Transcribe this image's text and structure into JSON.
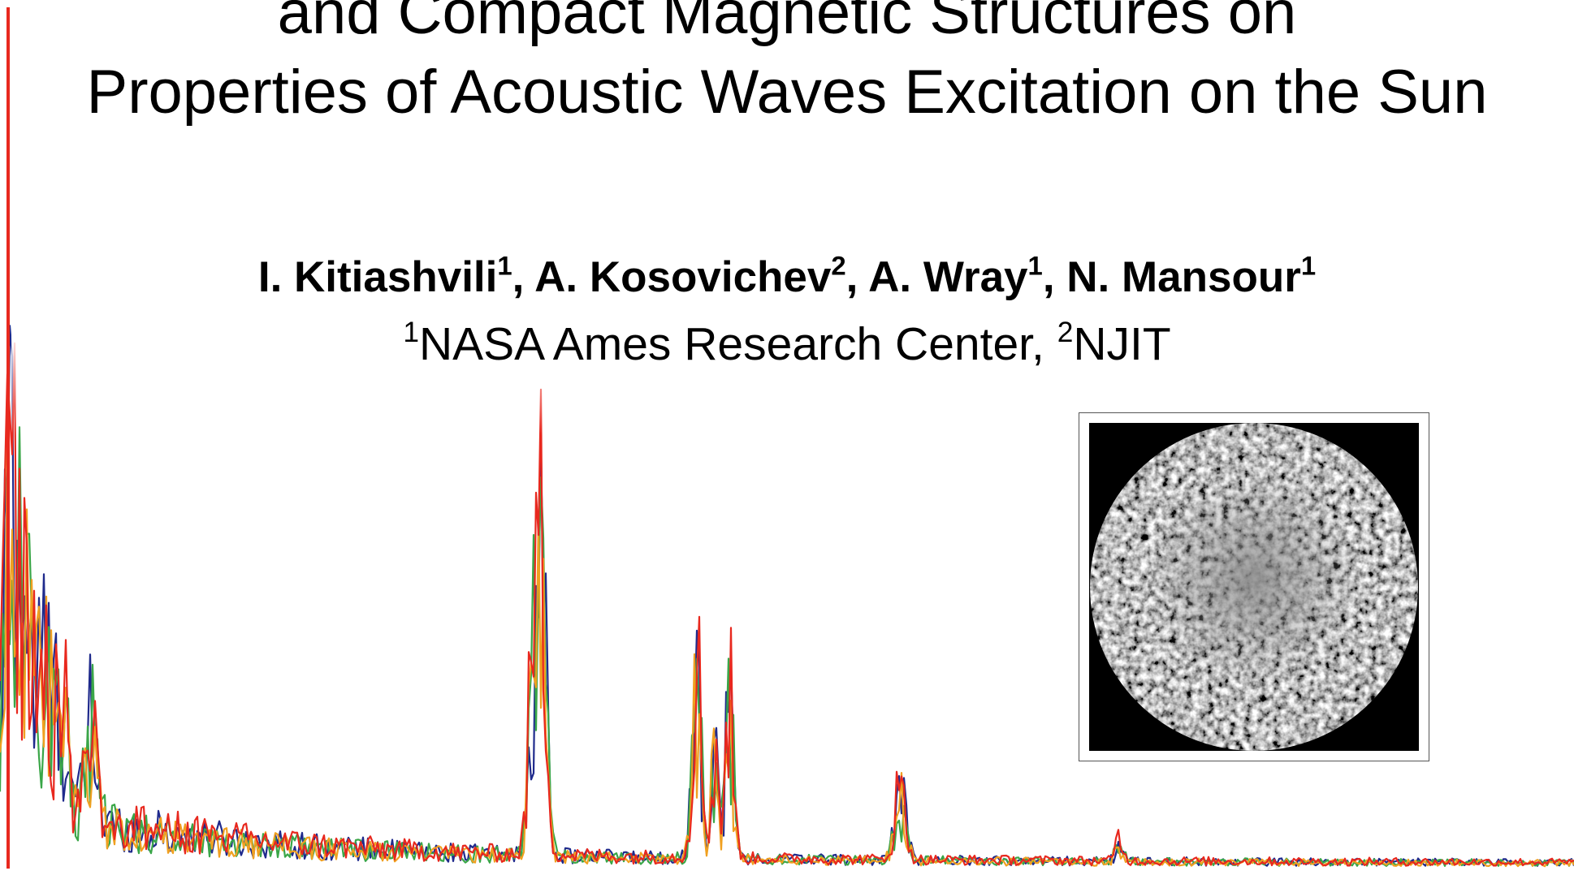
{
  "slide": {
    "title_lines": [
      "and Compact Magnetic Structures on",
      "Properties of Acoustic Waves Excitation on the Sun"
    ],
    "authors": [
      {
        "name": "I. Kitiashvili",
        "aff": "1",
        "sep": ", "
      },
      {
        "name": "A. Kosovichev",
        "aff": "2",
        "sep": ", "
      },
      {
        "name": "A. Wray",
        "aff": "1",
        "sep": ", "
      },
      {
        "name": "N. Mansour",
        "aff": "1",
        "sep": ""
      }
    ],
    "affiliations": [
      {
        "num": "1",
        "name": "NASA Ames Research Center",
        "sep": ", "
      },
      {
        "num": "2",
        "name": "NJIT",
        "sep": ""
      }
    ]
  },
  "colors": {
    "background": "#ffffff",
    "text": "#000000",
    "series_navy": "#1f2a8c",
    "series_green": "#3aa648",
    "series_orange": "#f0a020",
    "series_red": "#e8281e"
  },
  "decorative": {
    "background_spectrum": "faded power-spectrum plot with four overlapping colored traces (navy, green, orange, red) spanning the slide, no axes or labels",
    "inset_image": "grayscale solar disk showing wave / granulation pattern on black square"
  }
}
